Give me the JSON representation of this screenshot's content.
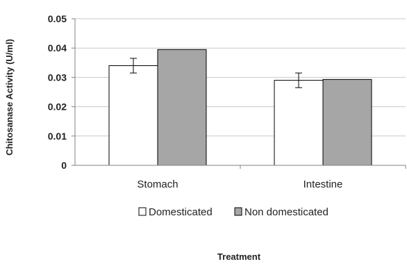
{
  "chart_data": {
    "type": "bar",
    "categories": [
      "Stomach",
      "Intestine"
    ],
    "series": [
      {
        "name": "Domesticated",
        "values": [
          0.034,
          0.029
        ],
        "errors": [
          0.0025,
          0.0025
        ],
        "color": "#ffffff"
      },
      {
        "name": "Non domesticated",
        "values": [
          0.0395,
          0.0293
        ],
        "errors": [
          0,
          0
        ],
        "color": "#a6a6a6"
      }
    ],
    "title": "",
    "xlabel": "Treatment",
    "ylabel": "Chitosanase Activity (U/ml)",
    "ylim": [
      0,
      0.05
    ],
    "yticks": [
      "0",
      "0.01",
      "0.02",
      "0.03",
      "0.04",
      "0.05"
    ],
    "grid": true,
    "legend": "bottom"
  }
}
